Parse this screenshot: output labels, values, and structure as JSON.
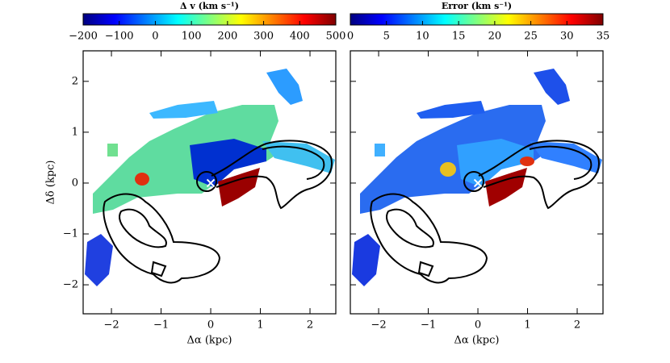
{
  "chart_data": [
    {
      "type": "image",
      "colormap": "jet",
      "colorbar": {
        "label": "Δ v (km s⁻¹)",
        "lim": [
          -200,
          500
        ],
        "ticks": [
          {
            "value": -200,
            "label": "−200"
          },
          {
            "value": -100,
            "label": "−100"
          },
          0,
          100,
          200,
          300,
          400,
          500
        ]
      },
      "xlabel": "Δα (kpc)",
      "ylabel": "Δδ (kpc)",
      "xlim": [
        -2.57,
        2.52
      ],
      "ylim": [
        -2.57,
        2.6
      ],
      "xticks": [
        {
          "value": -2,
          "label": "−2"
        },
        {
          "value": -1,
          "label": "−1"
        },
        0,
        1,
        2
      ],
      "yticks": [
        {
          "value": -2,
          "label": "−2"
        },
        {
          "value": -1,
          "label": "−1"
        },
        0,
        1,
        2
      ],
      "show_ytick_labels": true,
      "marker": {
        "x": 0,
        "y": 0
      }
    },
    {
      "type": "image",
      "colormap": "jet",
      "colorbar": {
        "label": "Error (km s⁻¹)",
        "lim": [
          0,
          35
        ],
        "ticks": [
          0,
          5,
          10,
          15,
          20,
          25,
          30,
          35
        ]
      },
      "xlabel": "Δα (kpc)",
      "xlim": [
        -2.57,
        2.52
      ],
      "ylim": [
        -2.57,
        2.6
      ],
      "xticks": [
        {
          "value": -2,
          "label": "−2"
        },
        {
          "value": -1,
          "label": "−1"
        },
        0,
        1,
        2
      ],
      "yticks": [
        -2,
        -1,
        0,
        1,
        2
      ],
      "show_ytick_labels": false,
      "marker": {
        "x": 0,
        "y": 0
      }
    }
  ]
}
